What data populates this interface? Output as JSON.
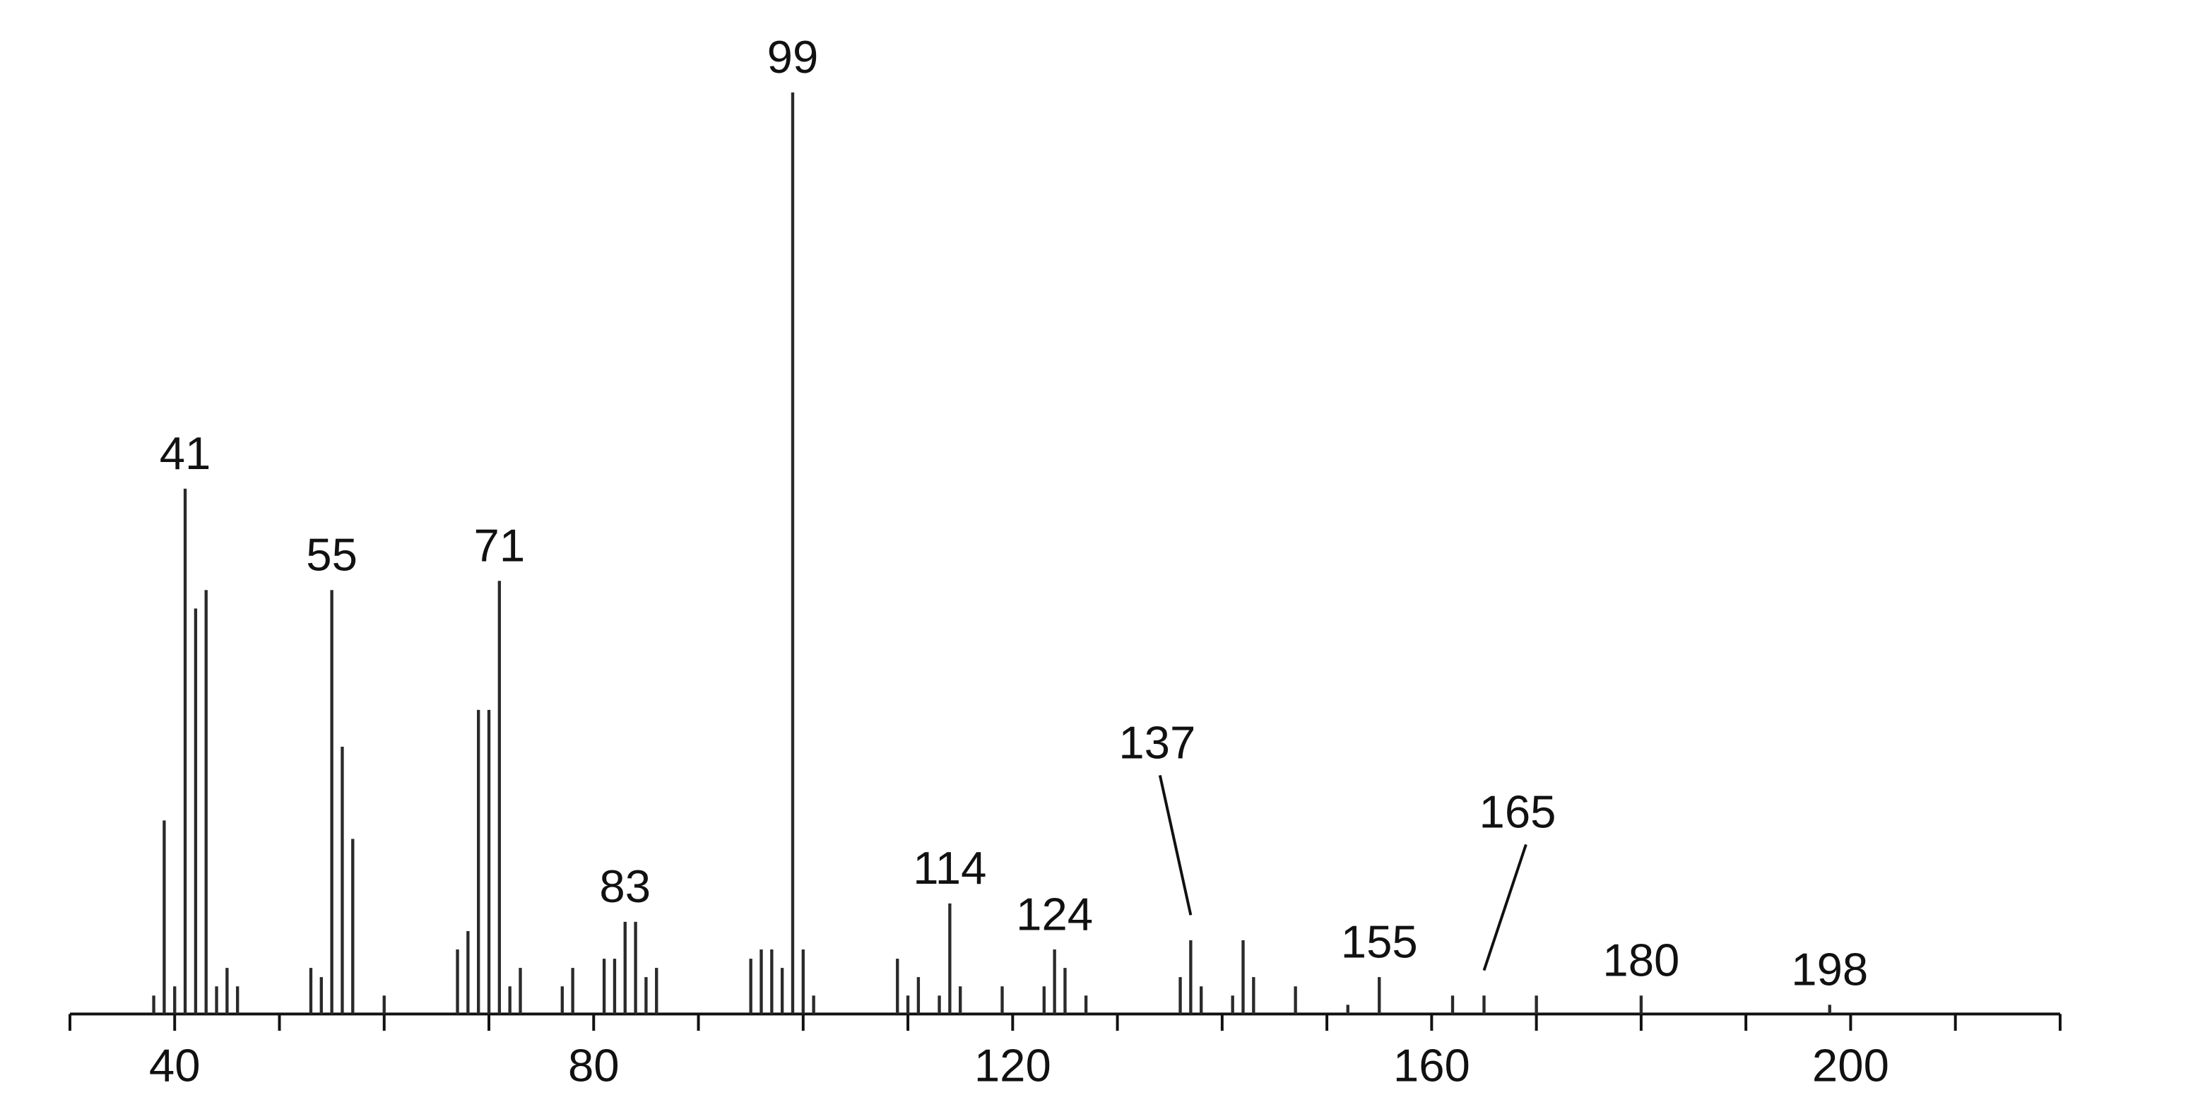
{
  "chart_data": {
    "type": "stem",
    "color": "#2a2a2a",
    "x": [
      38,
      39,
      40,
      41,
      42,
      43,
      44,
      45,
      46,
      53,
      54,
      55,
      56,
      57,
      60,
      67,
      68,
      69,
      70,
      71,
      72,
      73,
      77,
      78,
      81,
      82,
      83,
      84,
      85,
      86,
      95,
      96,
      97,
      98,
      99,
      100,
      101,
      109,
      110,
      111,
      113,
      114,
      115,
      119,
      123,
      124,
      125,
      127,
      136,
      137,
      138,
      141,
      142,
      143,
      147,
      152,
      155,
      162,
      165,
      170,
      180,
      198
    ],
    "values": [
      2,
      21,
      3,
      57,
      44,
      46,
      3,
      5,
      3,
      5,
      4,
      46,
      29,
      19,
      2,
      7,
      9,
      33,
      33,
      47,
      3,
      5,
      3,
      5,
      6,
      6,
      10,
      10,
      4,
      5,
      6,
      7,
      7,
      5,
      100,
      7,
      2,
      6,
      2,
      4,
      2,
      12,
      3,
      3,
      3,
      7,
      5,
      2,
      4,
      8,
      3,
      2,
      8,
      4,
      3,
      1,
      4,
      2,
      2,
      2,
      2,
      1
    ],
    "peak_labels": [
      41,
      55,
      71,
      83,
      99,
      114,
      124,
      137,
      155,
      165,
      180,
      198
    ],
    "xlim": [
      30,
      220
    ],
    "xticks": [
      40,
      80,
      120,
      160,
      200
    ],
    "minor_xticks": [
      30,
      50,
      60,
      70,
      90,
      100,
      110,
      130,
      140,
      150,
      170,
      180,
      190,
      210,
      220
    ]
  }
}
